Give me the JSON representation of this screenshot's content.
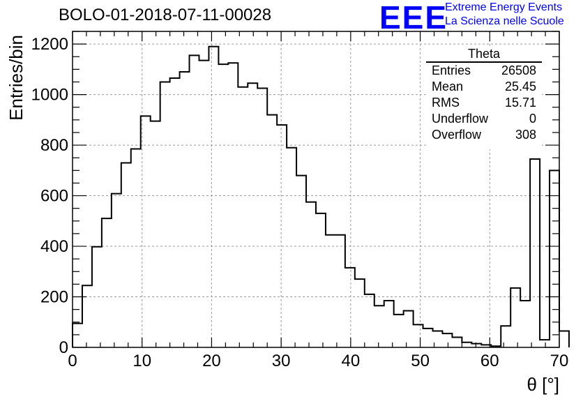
{
  "header": {
    "title": "BOLO-01-2018-07-11-00028",
    "logo_text": "EEE",
    "logo_line1": "Extreme Energy Events",
    "logo_line2": "La Scienza nelle Scuole",
    "logo_color": "#0000ff"
  },
  "stats_box": {
    "name": "Theta",
    "rows": [
      {
        "label": "Entries",
        "value": "26508"
      },
      {
        "label": "Mean",
        "value": "25.45"
      },
      {
        "label": "RMS",
        "value": "15.71"
      },
      {
        "label": "Underflow",
        "value": "0"
      },
      {
        "label": "Overflow",
        "value": "308"
      }
    ]
  },
  "chart_data": {
    "type": "histogram",
    "title": "BOLO-01-2018-07-11-00028",
    "xlabel": "θ [°]",
    "ylabel": "Entries/bin",
    "xlim": [
      0,
      70
    ],
    "ylim": [
      0,
      1250
    ],
    "bin_width": 1.4,
    "x_ticks": [
      0,
      10,
      20,
      30,
      40,
      50,
      60,
      70
    ],
    "y_ticks": [
      0,
      200,
      400,
      600,
      800,
      1000,
      1200
    ],
    "grid": true,
    "values": [
      95,
      245,
      398,
      510,
      608,
      730,
      785,
      915,
      895,
      1050,
      1065,
      1090,
      1155,
      1135,
      1190,
      1120,
      1125,
      1030,
      1045,
      1025,
      920,
      880,
      790,
      680,
      575,
      530,
      445,
      445,
      315,
      270,
      210,
      165,
      185,
      130,
      145,
      90,
      75,
      65,
      55,
      40,
      20,
      15,
      10,
      5,
      85,
      235,
      185,
      745,
      30,
      700,
      65
    ]
  }
}
